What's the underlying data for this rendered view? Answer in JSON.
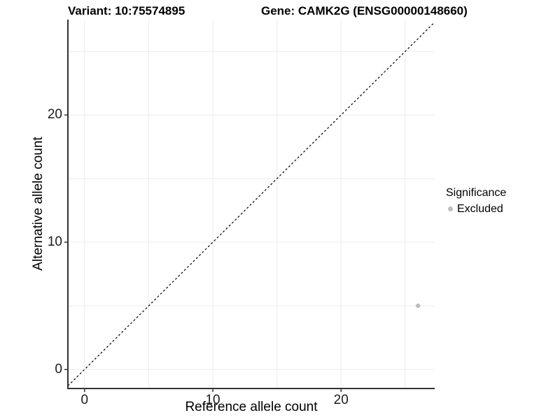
{
  "header": {
    "variant_title": "Variant: 10:75574895",
    "gene_title": "Gene: CAMK2G (ENSG00000148660)"
  },
  "legend": {
    "title": "Significance",
    "items": [
      {
        "label": "Excluded",
        "color": "#bdbdbd"
      }
    ]
  },
  "chart_data": {
    "type": "scatter",
    "title": "Variant: 10:75574895 / Gene: CAMK2G (ENSG00000148660)",
    "xlabel": "Reference allele count",
    "ylabel": "Alternative allele count",
    "xlim": [
      -1.3,
      27.3
    ],
    "ylim": [
      -1.5,
      27.5
    ],
    "x_ticks": [
      0,
      10,
      20
    ],
    "y_ticks": [
      0,
      10,
      20
    ],
    "grid_positions": [
      0,
      5,
      10,
      15,
      20,
      25
    ],
    "grid_on": true,
    "series": [
      {
        "name": "Excluded",
        "color": "#bdbdbd",
        "points": [
          {
            "x": 26,
            "y": 5
          }
        ]
      }
    ],
    "reference_line": {
      "equation": "y = x",
      "style": "dashed",
      "color": "#000000"
    },
    "colors": {
      "grid": "#ececec",
      "axis": "#333333",
      "tick": "#333333"
    },
    "legend_position": "right"
  }
}
